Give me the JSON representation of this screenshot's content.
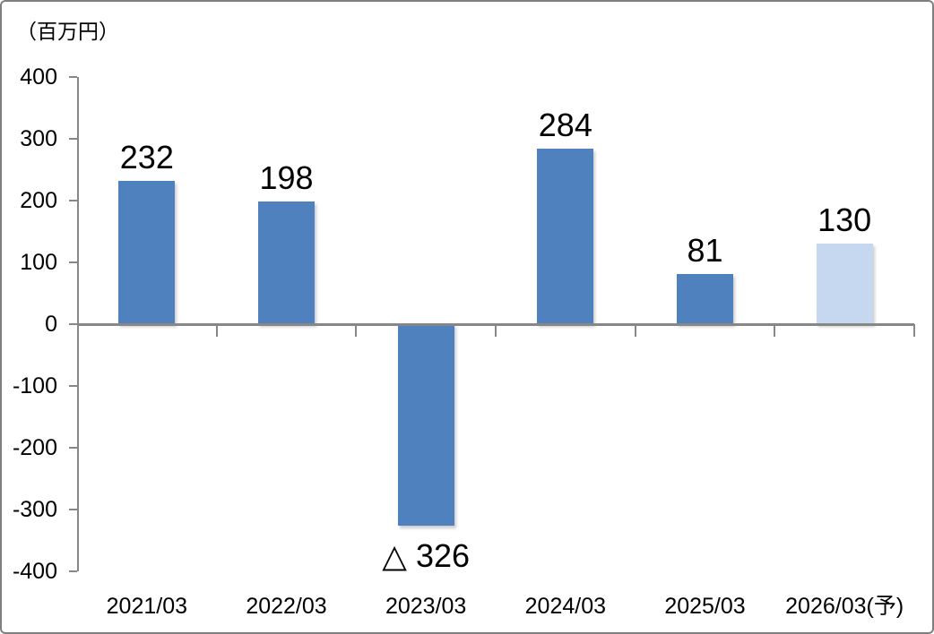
{
  "chart_data": {
    "type": "bar",
    "title": "",
    "unit_label": "（百万円）",
    "categories": [
      "2021/03",
      "2022/03",
      "2023/03",
      "2024/03",
      "2025/03",
      "2026/03(予)"
    ],
    "values": [
      232,
      198,
      -326,
      284,
      81,
      130
    ],
    "value_labels": [
      "232",
      "198",
      "△ 326",
      "284",
      "81",
      "130"
    ],
    "ylim": [
      -400,
      400
    ],
    "ytick_step": 100,
    "yticks": [
      400,
      300,
      200,
      100,
      0,
      -100,
      -200,
      -300,
      -400
    ],
    "grid": "off",
    "legend": "none",
    "bar_colors": [
      "#4E81BD",
      "#4E81BD",
      "#4E81BD",
      "#4E81BD",
      "#4E81BD",
      "#C5D8EF"
    ],
    "colors": {
      "bar": "#4E81BD",
      "forecast_bar": "#C5D8EF",
      "axis": "#878787",
      "text": "#000000",
      "chart_border": "#7F7F7F"
    }
  }
}
